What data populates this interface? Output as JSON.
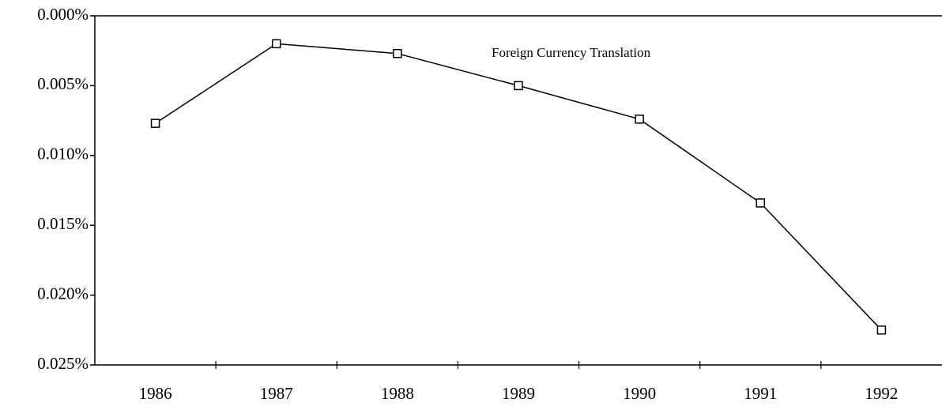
{
  "chart_data": {
    "type": "line",
    "categories": [
      "1986",
      "1987",
      "1988",
      "1989",
      "1990",
      "1991",
      "1992"
    ],
    "series": [
      {
        "name": "Foreign Currency Translation",
        "color": "#000000",
        "values": [
          0.0077,
          0.002,
          0.0027,
          0.005,
          0.0074,
          0.0134,
          0.0225
        ]
      }
    ],
    "ylim": [
      0,
      0.025
    ],
    "y_inverted": true,
    "yticks": [
      {
        "value": 0,
        "label": "0.000%"
      },
      {
        "value": 0.005,
        "label": "0.005%"
      },
      {
        "value": 0.01,
        "label": "0.010%"
      },
      {
        "value": 0.015,
        "label": "0.015%"
      },
      {
        "value": 0.02,
        "label": "0.020%"
      },
      {
        "value": 0.025,
        "label": "0.025%"
      }
    ],
    "grid": false
  }
}
